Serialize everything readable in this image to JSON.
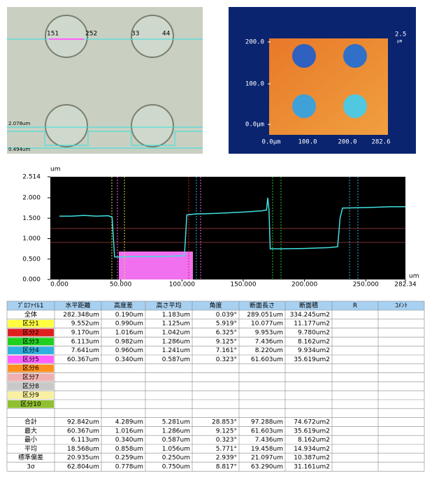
{
  "microscope": {
    "labels": [
      "151",
      "252",
      "33",
      "44"
    ],
    "levels": [
      "2.078um",
      "0.494um"
    ]
  },
  "height_map": {
    "y_labels": [
      "200.0",
      "100.0",
      "0.0μm"
    ],
    "x_labels": [
      "0.0μm",
      "100.0",
      "200.0",
      "282.6"
    ],
    "scale": "2.5",
    "scale_unit": "μm"
  },
  "profile_chart": {
    "type": "line",
    "y_unit": "um",
    "x_unit": "um",
    "color": "#40e0e0",
    "xlim": [
      0,
      282.34
    ],
    "ylim": [
      0,
      2.514
    ],
    "xticks": [
      {
        "value": 0,
        "label": "0.000"
      },
      {
        "value": 50,
        "label": "50.000"
      },
      {
        "value": 100,
        "label": "100.000"
      },
      {
        "value": 150,
        "label": "150.000"
      },
      {
        "value": 200,
        "label": "200.000"
      },
      {
        "value": 250,
        "label": "250.000"
      },
      282.34
    ],
    "yticks": [
      {
        "value": 0,
        "label": "0.000"
      },
      {
        "value": 0.5,
        "label": "0.500"
      },
      {
        "value": 1,
        "label": "1.000"
      },
      {
        "value": 1.5,
        "label": "1.500"
      },
      {
        "value": 2,
        "label": "2.000"
      },
      2.514
    ],
    "x": [
      0,
      10,
      20,
      30,
      40,
      43,
      45,
      48,
      60,
      75,
      90,
      100,
      102,
      104,
      110,
      130,
      150,
      165,
      169,
      170,
      171,
      172,
      180,
      200,
      220,
      227,
      229,
      231,
      250,
      270,
      282.34
    ],
    "values": [
      1.55,
      1.55,
      1.57,
      1.55,
      1.56,
      1.52,
      0.55,
      0.55,
      0.56,
      0.56,
      0.57,
      0.58,
      0.58,
      1.58,
      1.6,
      1.62,
      1.65,
      1.68,
      1.7,
      2.0,
      1.7,
      0.75,
      0.75,
      0.76,
      0.78,
      0.8,
      1.5,
      1.75,
      1.76,
      1.78,
      1.78
    ]
  },
  "table": {
    "header": [
      "ﾌﾟﾛﾌｧｲﾙ1",
      "水平距離",
      "高度差",
      "高さ平均",
      "角度",
      "断面長さ",
      "断面積",
      "R",
      "ｺﾒﾝﾄ"
    ],
    "rows": [
      {
        "label": "全体",
        "cells": [
          "282.348um",
          "0.190um",
          "1.183um",
          "0.039°",
          "289.051um",
          "334.245um2"
        ]
      },
      {
        "label": "区分1",
        "color": "#ffff40",
        "cells": [
          "9.552um",
          "0.990um",
          "1.125um",
          "5.919°",
          "10.077um",
          "11.177um2"
        ]
      },
      {
        "label": "区分2",
        "color": "#e02020",
        "cells": [
          "9.170um",
          "1.016um",
          "1.042um",
          "6.325°",
          "9.953um",
          "9.780um2"
        ]
      },
      {
        "label": "区分3",
        "color": "#20d020",
        "cells": [
          "6.113um",
          "0.982um",
          "1.286um",
          "9.125°",
          "7.436um",
          "8.162um2"
        ]
      },
      {
        "label": "区分4",
        "color": "#30b0e0",
        "cells": [
          "7.641um",
          "0.960um",
          "1.241um",
          "7.161°",
          "8.220um",
          "9.934um2"
        ]
      },
      {
        "label": "区分5",
        "color": "#ff60ff",
        "cells": [
          "60.367um",
          "0.340um",
          "0.587um",
          "0.323°",
          "61.603um",
          "35.619um2"
        ]
      },
      {
        "label": "区分6",
        "color": "#ff9020"
      },
      {
        "label": "区分7",
        "color": "#f0b0b0"
      },
      {
        "label": "区分8",
        "color": "#c8c8c8"
      },
      {
        "label": "区分9",
        "color": "#f8f0a0"
      },
      {
        "label": "区分10",
        "color": "#90c030"
      }
    ],
    "summary": [
      {
        "label": "合計",
        "cells": [
          "92.842um",
          "4.289um",
          "5.281um",
          "28.853°",
          "97.288um",
          "74.672um2"
        ]
      },
      {
        "label": "最大",
        "cells": [
          "60.367um",
          "1.016um",
          "1.286um",
          "9.125°",
          "61.603um",
          "35.619um2"
        ]
      },
      {
        "label": "最小",
        "cells": [
          "6.113um",
          "0.340um",
          "0.587um",
          "0.323°",
          "7.436um",
          "8.162um2"
        ]
      },
      {
        "label": "平均",
        "cells": [
          "18.568um",
          "0.858um",
          "1.056um",
          "5.771°",
          "19.458um",
          "14.934um2"
        ]
      },
      {
        "label": "標準偏差",
        "cells": [
          "20.935um",
          "0.259um",
          "0.250um",
          "2.939°",
          "21.097um",
          "10.387um2"
        ]
      },
      {
        "label": "3σ",
        "cells": [
          "62.804um",
          "0.778um",
          "0.750um",
          "8.817°",
          "63.290um",
          "31.161um2"
        ]
      }
    ]
  }
}
